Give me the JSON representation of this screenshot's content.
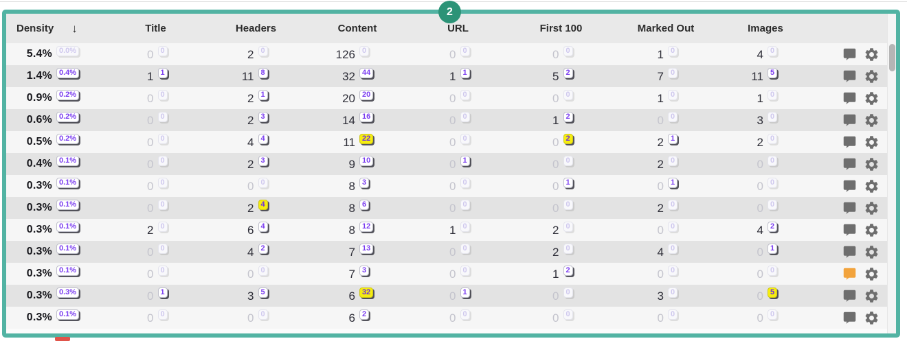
{
  "overlay": {
    "count_badge": "2"
  },
  "colors": {
    "panel_border": "#52b3a3",
    "count_badge_bg": "#2c9377",
    "badge_text_purple": "#7a3cf0",
    "badge_yellow_bg": "#f5ed10",
    "comment_icon_gray": "#6e6e6e",
    "comment_icon_orange": "#f2a33c",
    "header_bg": "#e9e9e9",
    "row_light": "#f6f6f6",
    "row_dark": "#e3e3e3"
  },
  "table": {
    "columns": [
      {
        "key": "density",
        "label": "Density",
        "sort": "↓"
      },
      {
        "key": "title",
        "label": "Title"
      },
      {
        "key": "headers",
        "label": "Headers"
      },
      {
        "key": "content",
        "label": "Content"
      },
      {
        "key": "url",
        "label": "URL"
      },
      {
        "key": "first-100",
        "label": "First 100"
      },
      {
        "key": "marked-out",
        "label": "Marked Out"
      },
      {
        "key": "images",
        "label": "Images"
      }
    ],
    "row_icons": [
      "comment-icon",
      "gear-icon"
    ],
    "state_legend": {
      "d": "value-dark",
      "m_first": "value-muted",
      "a": "badge-active",
      "m_second": "badge-muted",
      "y": "badge-yellow"
    },
    "rows": [
      {
        "comment": "gray",
        "cells": [
          {
            "v": "5.4%",
            "b": "0.0%",
            "s": "dm"
          },
          {
            "v": "0",
            "b": "0",
            "s": "mm"
          },
          {
            "v": "2",
            "b": "0",
            "s": "dm"
          },
          {
            "v": "126",
            "b": "0",
            "s": "dm"
          },
          {
            "v": "0",
            "b": "0",
            "s": "mm"
          },
          {
            "v": "0",
            "b": "0",
            "s": "mm"
          },
          {
            "v": "1",
            "b": "0",
            "s": "dm"
          },
          {
            "v": "4",
            "b": "0",
            "s": "dm"
          }
        ]
      },
      {
        "comment": "gray",
        "cells": [
          {
            "v": "1.4%",
            "b": "0.4%",
            "s": "da"
          },
          {
            "v": "1",
            "b": "1",
            "s": "da"
          },
          {
            "v": "11",
            "b": "8",
            "s": "da"
          },
          {
            "v": "32",
            "b": "44",
            "s": "da"
          },
          {
            "v": "1",
            "b": "1",
            "s": "da"
          },
          {
            "v": "5",
            "b": "2",
            "s": "da"
          },
          {
            "v": "7",
            "b": "0",
            "s": "dm"
          },
          {
            "v": "11",
            "b": "5",
            "s": "da"
          }
        ]
      },
      {
        "comment": "gray",
        "cells": [
          {
            "v": "0.9%",
            "b": "0.2%",
            "s": "da"
          },
          {
            "v": "0",
            "b": "0",
            "s": "mm"
          },
          {
            "v": "2",
            "b": "1",
            "s": "da"
          },
          {
            "v": "20",
            "b": "20",
            "s": "da"
          },
          {
            "v": "0",
            "b": "0",
            "s": "mm"
          },
          {
            "v": "0",
            "b": "0",
            "s": "mm"
          },
          {
            "v": "1",
            "b": "0",
            "s": "dm"
          },
          {
            "v": "1",
            "b": "0",
            "s": "dm"
          }
        ]
      },
      {
        "comment": "gray",
        "cells": [
          {
            "v": "0.6%",
            "b": "0.2%",
            "s": "da"
          },
          {
            "v": "0",
            "b": "0",
            "s": "mm"
          },
          {
            "v": "2",
            "b": "3",
            "s": "da"
          },
          {
            "v": "14",
            "b": "16",
            "s": "da"
          },
          {
            "v": "0",
            "b": "0",
            "s": "mm"
          },
          {
            "v": "1",
            "b": "2",
            "s": "da"
          },
          {
            "v": "0",
            "b": "0",
            "s": "mm"
          },
          {
            "v": "3",
            "b": "0",
            "s": "dm"
          }
        ]
      },
      {
        "comment": "gray",
        "cells": [
          {
            "v": "0.5%",
            "b": "0.2%",
            "s": "da"
          },
          {
            "v": "0",
            "b": "0",
            "s": "mm"
          },
          {
            "v": "4",
            "b": "4",
            "s": "da"
          },
          {
            "v": "11",
            "b": "22",
            "s": "dy"
          },
          {
            "v": "0",
            "b": "0",
            "s": "mm"
          },
          {
            "v": "0",
            "b": "2",
            "s": "my"
          },
          {
            "v": "2",
            "b": "1",
            "s": "da"
          },
          {
            "v": "2",
            "b": "0",
            "s": "dm"
          }
        ]
      },
      {
        "comment": "gray",
        "cells": [
          {
            "v": "0.4%",
            "b": "0.1%",
            "s": "da"
          },
          {
            "v": "0",
            "b": "0",
            "s": "mm"
          },
          {
            "v": "2",
            "b": "3",
            "s": "da"
          },
          {
            "v": "9",
            "b": "10",
            "s": "da"
          },
          {
            "v": "0",
            "b": "1",
            "s": "ma"
          },
          {
            "v": "0",
            "b": "0",
            "s": "mm"
          },
          {
            "v": "2",
            "b": "0",
            "s": "dm"
          },
          {
            "v": "0",
            "b": "0",
            "s": "mm"
          }
        ]
      },
      {
        "comment": "gray",
        "cells": [
          {
            "v": "0.3%",
            "b": "0.1%",
            "s": "da"
          },
          {
            "v": "0",
            "b": "0",
            "s": "mm"
          },
          {
            "v": "0",
            "b": "0",
            "s": "mm"
          },
          {
            "v": "8",
            "b": "3",
            "s": "da"
          },
          {
            "v": "0",
            "b": "0",
            "s": "mm"
          },
          {
            "v": "0",
            "b": "1",
            "s": "ma"
          },
          {
            "v": "0",
            "b": "1",
            "s": "ma"
          },
          {
            "v": "0",
            "b": "0",
            "s": "mm"
          }
        ]
      },
      {
        "comment": "gray",
        "cells": [
          {
            "v": "0.3%",
            "b": "0.1%",
            "s": "da"
          },
          {
            "v": "0",
            "b": "0",
            "s": "mm"
          },
          {
            "v": "2",
            "b": "4",
            "s": "dy"
          },
          {
            "v": "8",
            "b": "6",
            "s": "da"
          },
          {
            "v": "0",
            "b": "0",
            "s": "mm"
          },
          {
            "v": "0",
            "b": "0",
            "s": "mm"
          },
          {
            "v": "2",
            "b": "0",
            "s": "dm"
          },
          {
            "v": "0",
            "b": "0",
            "s": "mm"
          }
        ]
      },
      {
        "comment": "gray",
        "cells": [
          {
            "v": "0.3%",
            "b": "0.1%",
            "s": "da"
          },
          {
            "v": "2",
            "b": "0",
            "s": "dm"
          },
          {
            "v": "6",
            "b": "4",
            "s": "da"
          },
          {
            "v": "8",
            "b": "12",
            "s": "da"
          },
          {
            "v": "1",
            "b": "0",
            "s": "dm"
          },
          {
            "v": "2",
            "b": "0",
            "s": "dm"
          },
          {
            "v": "0",
            "b": "0",
            "s": "mm"
          },
          {
            "v": "4",
            "b": "2",
            "s": "da"
          }
        ]
      },
      {
        "comment": "gray",
        "cells": [
          {
            "v": "0.3%",
            "b": "0.1%",
            "s": "da"
          },
          {
            "v": "0",
            "b": "0",
            "s": "mm"
          },
          {
            "v": "4",
            "b": "2",
            "s": "da"
          },
          {
            "v": "7",
            "b": "13",
            "s": "da"
          },
          {
            "v": "0",
            "b": "0",
            "s": "mm"
          },
          {
            "v": "2",
            "b": "0",
            "s": "dm"
          },
          {
            "v": "4",
            "b": "0",
            "s": "dm"
          },
          {
            "v": "0",
            "b": "1",
            "s": "ma"
          }
        ]
      },
      {
        "comment": "orange",
        "cells": [
          {
            "v": "0.3%",
            "b": "0.1%",
            "s": "da"
          },
          {
            "v": "0",
            "b": "0",
            "s": "mm"
          },
          {
            "v": "0",
            "b": "0",
            "s": "mm"
          },
          {
            "v": "7",
            "b": "3",
            "s": "da"
          },
          {
            "v": "0",
            "b": "0",
            "s": "mm"
          },
          {
            "v": "1",
            "b": "2",
            "s": "da"
          },
          {
            "v": "0",
            "b": "0",
            "s": "mm"
          },
          {
            "v": "0",
            "b": "0",
            "s": "mm"
          }
        ]
      },
      {
        "comment": "gray",
        "cells": [
          {
            "v": "0.3%",
            "b": "0.3%",
            "s": "da"
          },
          {
            "v": "0",
            "b": "1",
            "s": "ma"
          },
          {
            "v": "3",
            "b": "5",
            "s": "da"
          },
          {
            "v": "6",
            "b": "32",
            "s": "dy"
          },
          {
            "v": "0",
            "b": "1",
            "s": "ma"
          },
          {
            "v": "0",
            "b": "0",
            "s": "mm"
          },
          {
            "v": "3",
            "b": "0",
            "s": "dm"
          },
          {
            "v": "0",
            "b": "5",
            "s": "my"
          }
        ]
      },
      {
        "comment": "gray",
        "cells": [
          {
            "v": "0.3%",
            "b": "0.1%",
            "s": "da"
          },
          {
            "v": "0",
            "b": "0",
            "s": "mm"
          },
          {
            "v": "0",
            "b": "0",
            "s": "mm"
          },
          {
            "v": "6",
            "b": "2",
            "s": "da"
          },
          {
            "v": "0",
            "b": "0",
            "s": "mm"
          },
          {
            "v": "0",
            "b": "0",
            "s": "mm"
          },
          {
            "v": "0",
            "b": "0",
            "s": "mm"
          },
          {
            "v": "0",
            "b": "0",
            "s": "mm"
          }
        ]
      }
    ]
  }
}
